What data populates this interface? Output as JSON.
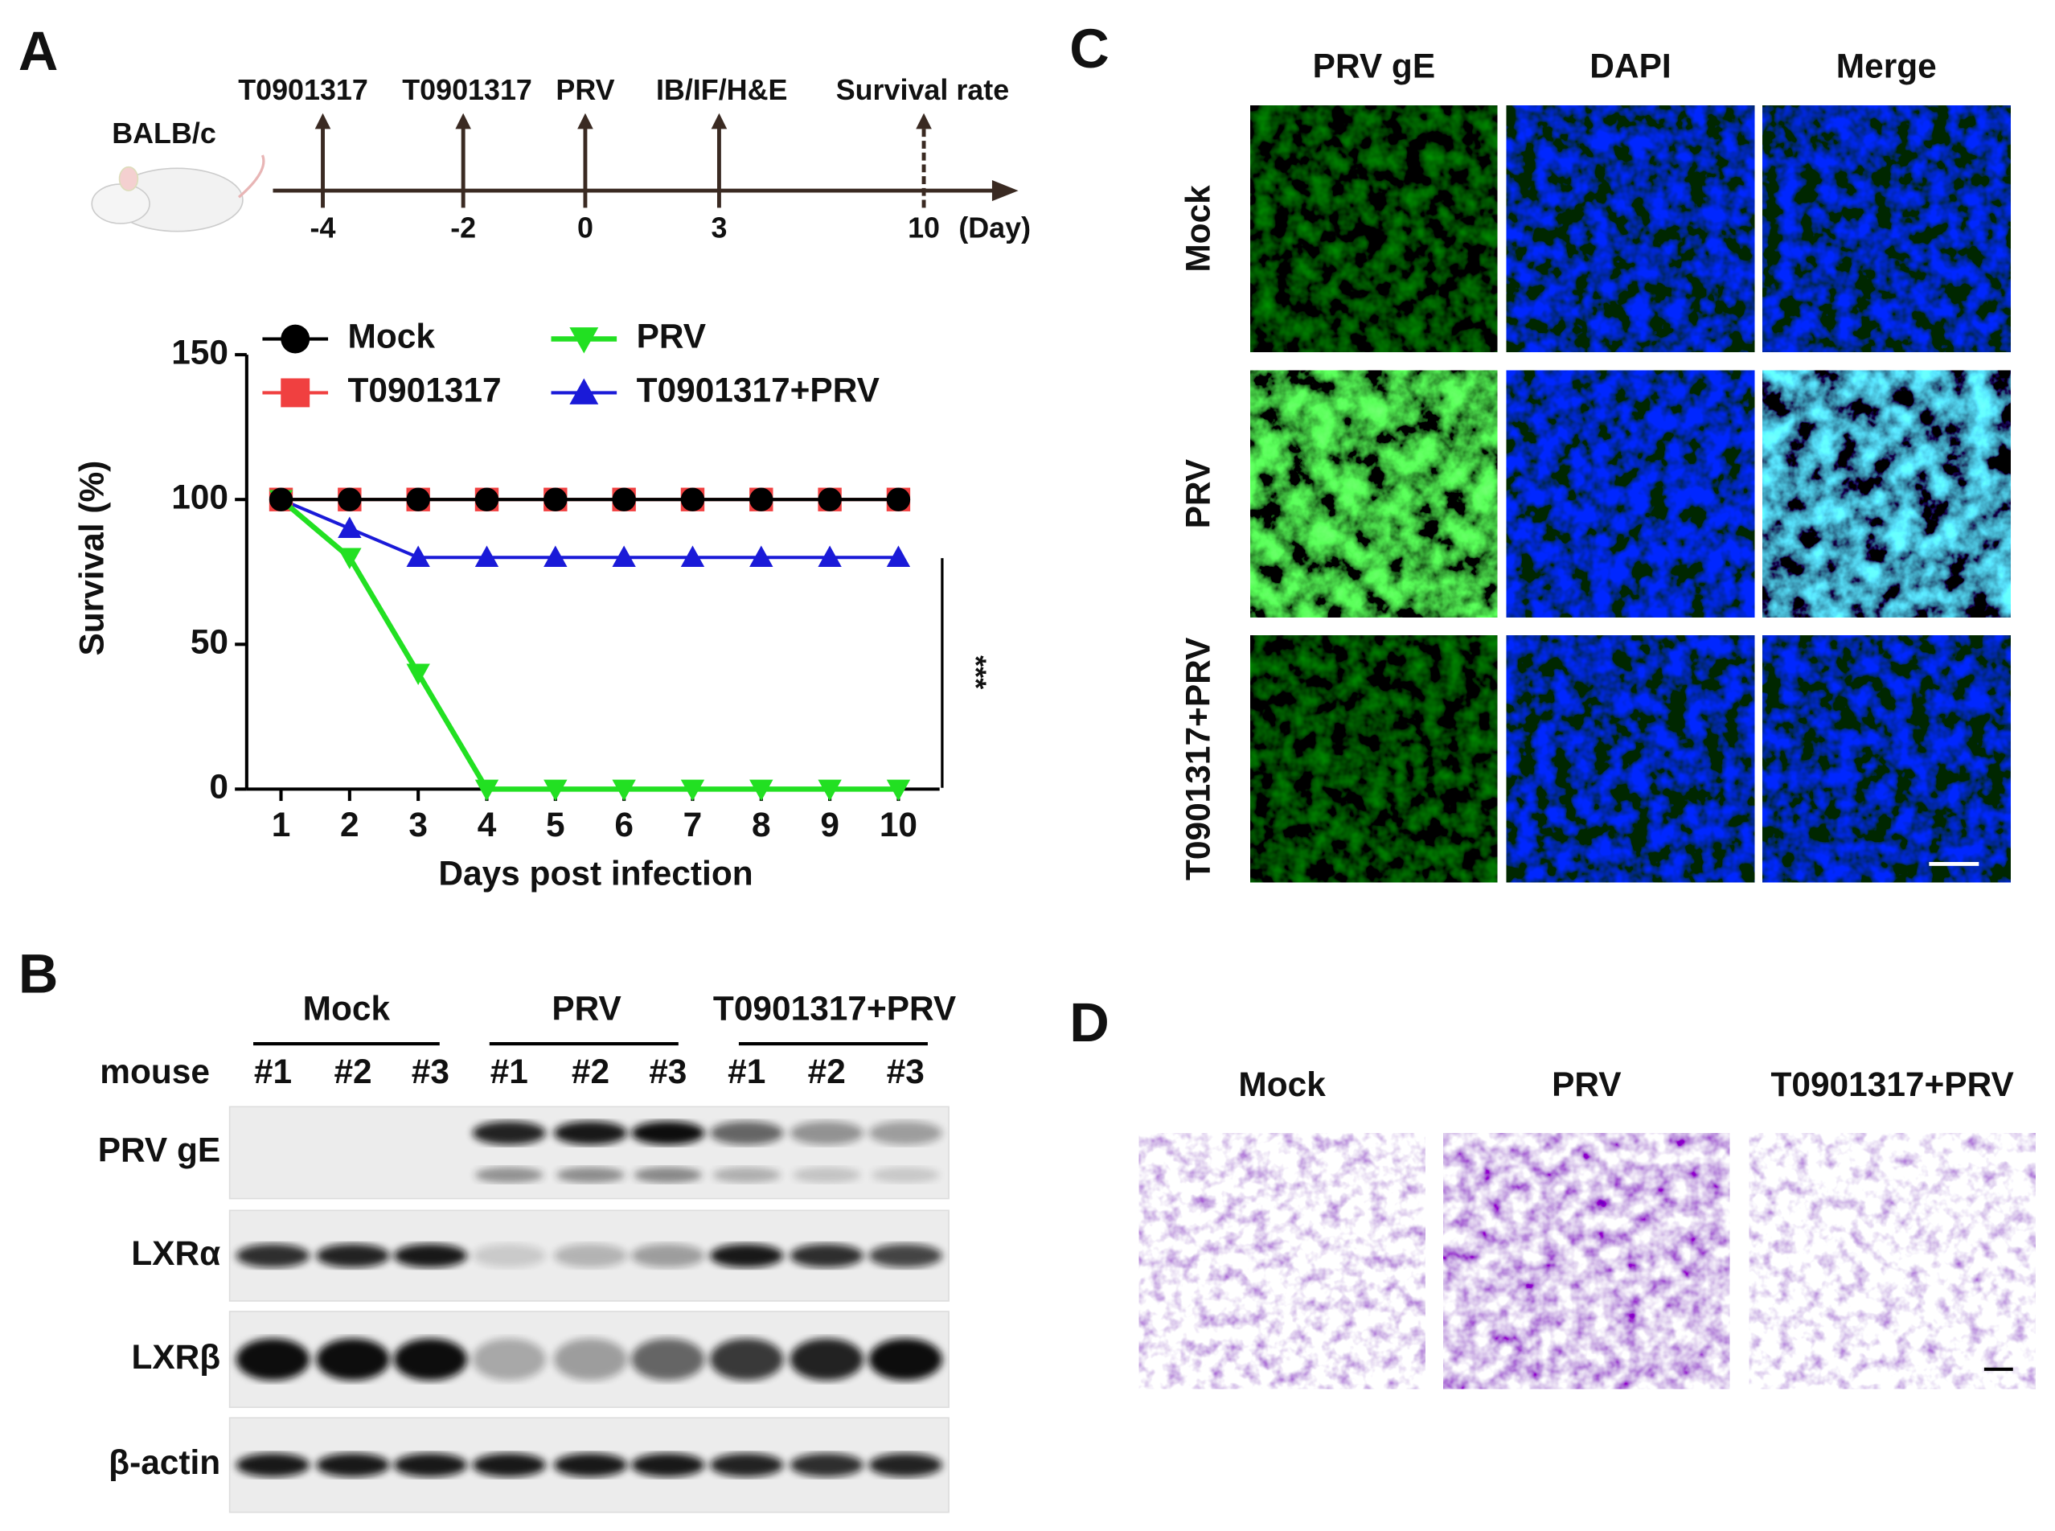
{
  "panels": {
    "a": "A",
    "b": "B",
    "c": "C",
    "d": "D"
  },
  "timeline": {
    "subject": "BALB/c",
    "unit": "(Day)",
    "events": [
      {
        "label": "T0901317",
        "day": -4
      },
      {
        "label": "T0901317",
        "day": -2
      },
      {
        "label": "PRV",
        "day": 0
      },
      {
        "label": "IB/IF/H&E",
        "day": 3
      },
      {
        "label": "Survival rate",
        "day": 10
      }
    ]
  },
  "chart_data": {
    "type": "line",
    "y_label": "Survival (%)",
    "x_label": "Days post infection",
    "annotation": "***",
    "x": [
      1,
      2,
      3,
      4,
      5,
      6,
      7,
      8,
      9,
      10
    ],
    "xlim": [
      0.5,
      10.6
    ],
    "xticks": [
      1,
      2,
      3,
      4,
      5,
      6,
      7,
      8,
      9,
      10
    ],
    "ylim": [
      0,
      150
    ],
    "yticks": [
      0,
      50,
      100,
      150
    ],
    "series": [
      {
        "name": "Mock",
        "color": "#000000",
        "marker": "circle",
        "values": [
          100,
          100,
          100,
          100,
          100,
          100,
          100,
          100,
          100,
          100
        ]
      },
      {
        "name": "PRV",
        "color": "#22e022",
        "marker": "triangle-down",
        "values": [
          100,
          80,
          40,
          0,
          0,
          0,
          0,
          0,
          0,
          0
        ]
      },
      {
        "name": "T0901317",
        "color": "#f04040",
        "marker": "square",
        "values": [
          100,
          100,
          100,
          100,
          100,
          100,
          100,
          100,
          100,
          100
        ]
      },
      {
        "name": "T0901317+PRV",
        "color": "#1a1ad8",
        "marker": "triangle-up",
        "values": [
          100,
          90,
          80,
          80,
          80,
          80,
          80,
          80,
          80,
          80
        ]
      }
    ]
  },
  "western_blot": {
    "groups": [
      "Mock",
      "PRV",
      "T0901317+PRV"
    ],
    "row_header": "mouse",
    "lanes": [
      "#1",
      "#2",
      "#3",
      "#1",
      "#2",
      "#3",
      "#1",
      "#2",
      "#3"
    ],
    "rows": [
      "PRV gE",
      "LXRα",
      "LXRβ",
      "β-actin"
    ]
  },
  "immunofluorescence": {
    "columns": [
      "PRV gE",
      "DAPI",
      "Merge"
    ],
    "rows": [
      "Mock",
      "PRV",
      "T0901317+PRV"
    ]
  },
  "histology": {
    "columns": [
      "Mock",
      "PRV",
      "T0901317+PRV"
    ]
  }
}
